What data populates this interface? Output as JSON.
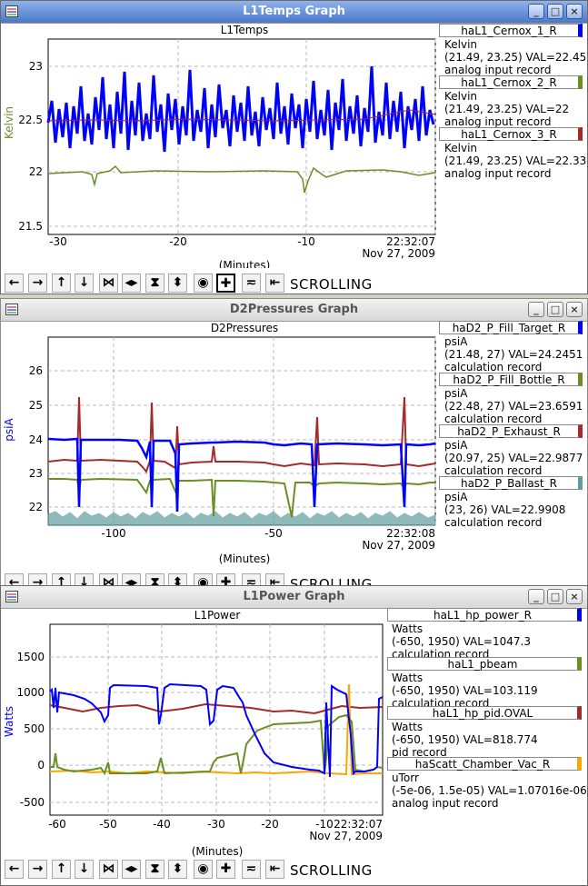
{
  "windows": [
    {
      "title": "L1Temps Graph",
      "plot_title": "L1Temps",
      "ylabel": "Kelvin",
      "xlabel": "(Minutes)",
      "time_label": "22:32:07",
      "date_label": "Nov 27, 2009",
      "yticks": [
        "21.5",
        "22",
        "22.5",
        "23"
      ],
      "xticks": [
        "-30",
        "-20",
        "-10"
      ],
      "ylabel_color": "#6b8e23",
      "legend": [
        {
          "name": "haL1_Cernox_1_R",
          "color": "#0000ff",
          "units": "Kelvin",
          "range_val": "(21.49, 23.25) VAL=22.45",
          "record": "analog input record"
        },
        {
          "name": "haL1_Cernox_2_R",
          "color": "#6b8e23",
          "units": "Kelvin",
          "range_val": "(21.49, 23.25) VAL=22",
          "record": "analog input record"
        },
        {
          "name": "haL1_Cernox_3_R",
          "color": "#a52a2a",
          "units": "Kelvin",
          "range_val": "(21.49, 23.25) VAL=22.33",
          "record": "analog input record"
        }
      ]
    },
    {
      "title": "D2Pressures Graph",
      "plot_title": "D2Pressures",
      "ylabel": "psiA",
      "xlabel": "(Minutes)",
      "time_label": "22:32:08",
      "date_label": "Nov 27, 2009",
      "yticks": [
        "22",
        "23",
        "24",
        "25",
        "26"
      ],
      "xticks": [
        "-100",
        "-50"
      ],
      "ylabel_color": "#0000ff",
      "legend": [
        {
          "name": "haD2_P_Fill_Target_R",
          "color": "#0000ff",
          "units": "psiA",
          "range_val": "(21.48, 27) VAL=24.2451",
          "record": "calculation record"
        },
        {
          "name": "haD2_P_Fill_Bottle_R",
          "color": "#6b8e23",
          "units": "psiA",
          "range_val": "(22.48, 27) VAL=23.6591",
          "record": "calculation record"
        },
        {
          "name": "haD2_P_Exhaust_R",
          "color": "#a52a2a",
          "units": "psiA",
          "range_val": "(20.97, 25) VAL=22.9877",
          "record": "calculation record"
        },
        {
          "name": "haD2_P_Ballast_R",
          "color": "#5f9ea0",
          "units": "psiA",
          "range_val": "(23, 26) VAL=22.9908",
          "record": "calculation record"
        }
      ]
    },
    {
      "title": "L1Power Graph",
      "plot_title": "L1Power",
      "ylabel": "Watts",
      "xlabel": "(Minutes)",
      "time_label": "22:32:07",
      "time_overlap": "-10",
      "date_label": "Nov 27, 2009",
      "yticks": [
        "-500",
        "0",
        "500",
        "1000",
        "1500"
      ],
      "xticks": [
        "-60",
        "-50",
        "-40",
        "-30",
        "-20"
      ],
      "ylabel_color": "#0000ff",
      "legend": [
        {
          "name": "haL1_hp_power_R",
          "color": "#0000ff",
          "units": "Watts",
          "range_val": "(-650, 1950) VAL=1047.3",
          "record": "calculation record"
        },
        {
          "name": "haL1_pbeam",
          "color": "#6b8e23",
          "units": "Watts",
          "range_val": "(-650, 1950) VAL=103.119",
          "record": "calculation record"
        },
        {
          "name": "haL1_hp_pid.OVAL",
          "color": "#a52a2a",
          "units": "Watts",
          "range_val": "(-650, 1950) VAL=818.774",
          "record": "pid record"
        },
        {
          "name": "haScatt_Chamber_Vac_R",
          "color": "#ffa500",
          "units": "uTorr",
          "range_val": "(-5e-06, 1.5e-05) VAL=1.07016e-06",
          "record": "analog input record"
        }
      ]
    }
  ],
  "toolbar": {
    "scrolling_label": "SCROLLING",
    "icons": [
      "left-arrow-icon",
      "right-arrow-icon",
      "up-arrow-icon",
      "down-arrow-icon",
      "zoom-in-x-icon",
      "zoom-out-x-icon",
      "zoom-in-y-icon",
      "zoom-out-y-icon",
      "autoscale-icon",
      "crosshair-icon",
      "reset-icon",
      "scroll-icon"
    ]
  },
  "window_buttons": {
    "minimize": "_",
    "maximize": "□",
    "close": "×"
  }
}
